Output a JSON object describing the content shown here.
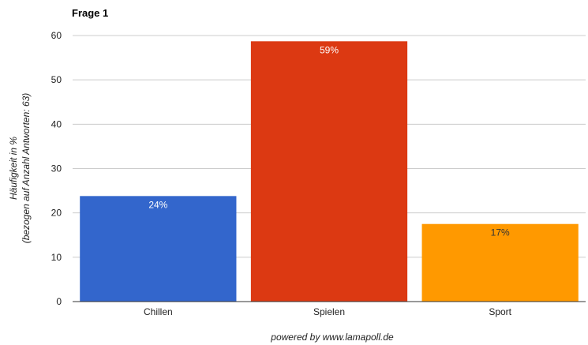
{
  "chart_data": {
    "type": "bar",
    "title": "Frage 1",
    "ylabel_lines": [
      "Häufigkeit in %",
      "(bezogen auf Anzahl Antworten: 63)"
    ],
    "xlabel": "",
    "categories": [
      "Chillen",
      "Spielen",
      "Sport"
    ],
    "values": [
      23.8,
      58.7,
      17.5
    ],
    "data_labels": [
      "24%",
      "59%",
      "17%"
    ],
    "colors": [
      "#3366cc",
      "#dc3912",
      "#ff9900"
    ],
    "data_label_colors": [
      "#ffffff",
      "#ffffff",
      "#333333"
    ],
    "ylim": [
      0,
      60
    ],
    "yticks": [
      0,
      10,
      20,
      30,
      40,
      50,
      60
    ],
    "grid": true,
    "legend": "none"
  },
  "footer": "powered by www.lamapoll.de"
}
